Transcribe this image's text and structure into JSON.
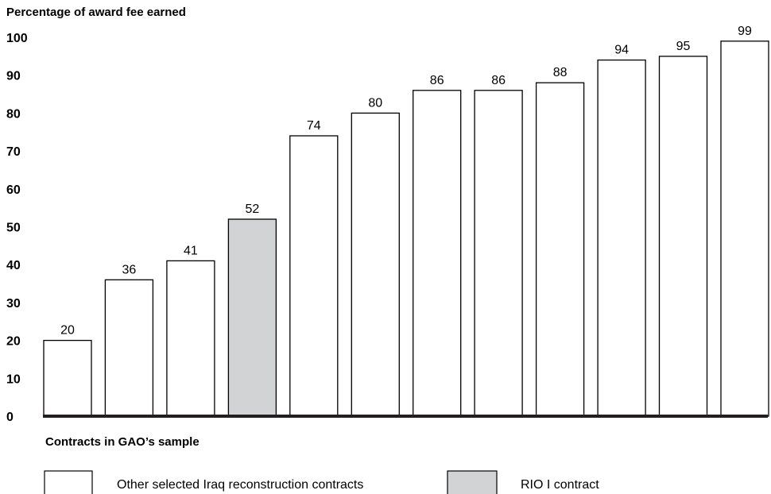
{
  "chart_data": {
    "type": "bar",
    "ylabel": "Percentage of award fee earned",
    "xlabel": "Contracts in GAO’s sample",
    "ylim": [
      0,
      100
    ],
    "yticks": [
      "0",
      "10",
      "20",
      "30",
      "40",
      "50",
      "60",
      "70",
      "80",
      "90",
      "100"
    ],
    "values": [
      20,
      36,
      41,
      52,
      74,
      80,
      86,
      86,
      88,
      94,
      95,
      99
    ],
    "highlight_index": 3,
    "grid": false,
    "legend_position": "bottom",
    "legend": [
      {
        "label": "Other selected Iraq reconstruction contracts",
        "color": "#ffffff"
      },
      {
        "label": "RIO I contract",
        "color": "#d1d3d4"
      }
    ],
    "colors": {
      "default": "#ffffff",
      "highlight": "#d1d3d4",
      "stroke": "#000000",
      "axis": "#231f20"
    }
  }
}
